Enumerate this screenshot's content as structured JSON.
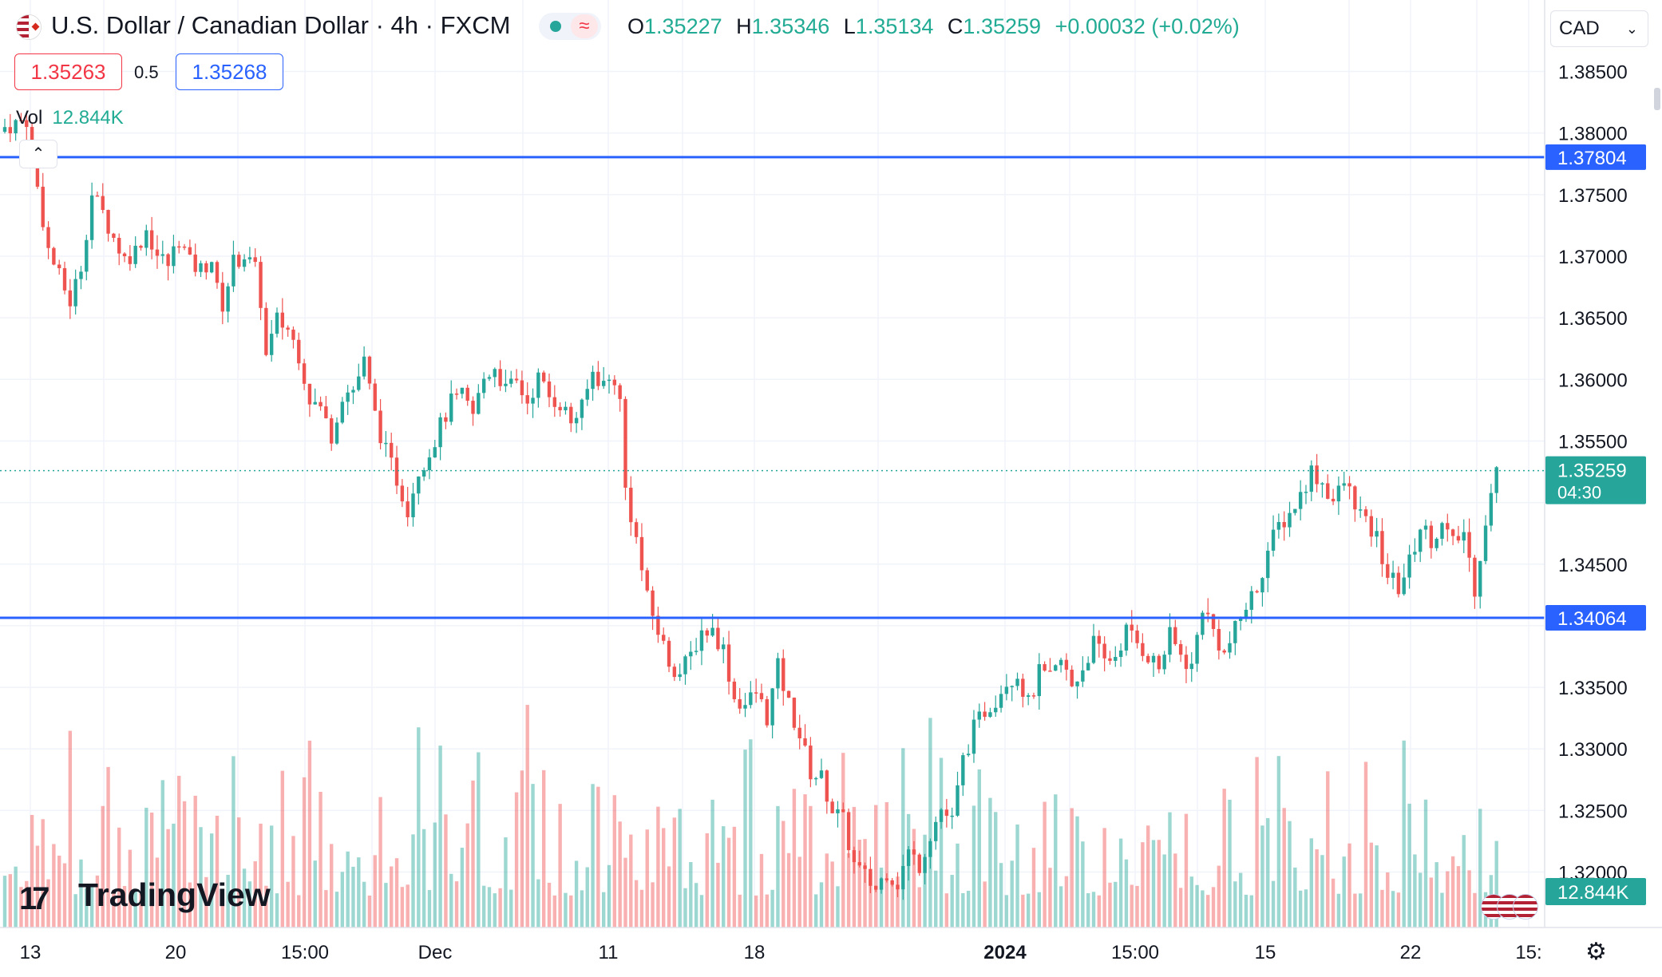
{
  "header": {
    "title": "U.S. Dollar / Canadian Dollar · 4h · FXCM",
    "ohlc": {
      "open_label": "O",
      "open": "1.35227",
      "high_label": "H",
      "high": "1.35346",
      "low_label": "L",
      "low": "1.35134",
      "close_label": "C",
      "close": "1.35259",
      "change": "+0.00032 (+0.02%)"
    },
    "bid": "1.35263",
    "spread": "0.5",
    "ask": "1.35268",
    "volume_label": "Vol",
    "volume_value": "12.844K",
    "currency": "CAD",
    "collapse_icon": "chevron-up-icon",
    "status_icon": "green-dot-icon",
    "wave_icon": "approx-wave-icon"
  },
  "colors": {
    "up": "#26a69a",
    "down": "#ef5350",
    "level_line": "#2962ff",
    "grid": "#f0f3fa"
  },
  "branding": {
    "logo_text": "TradingView",
    "logo_icon": "tradingview-logo-icon"
  },
  "axis": {
    "settings_icon": "gear-icon"
  },
  "chart_data": {
    "type": "candlestick",
    "symbol": "USDCAD",
    "interval": "4h",
    "ylim": [
      1.3155,
      1.3908
    ],
    "y_ticks": [
      "1.38500",
      "1.38000",
      "1.37500",
      "1.37000",
      "1.36500",
      "1.36000",
      "1.35500",
      "1.34500",
      "1.33500",
      "1.33000",
      "1.32500",
      "1.32000"
    ],
    "x_ticks": [
      "13",
      "20",
      "15:00",
      "Dec",
      "11",
      "18",
      "2024",
      "15:00",
      "15",
      "22",
      "15:"
    ],
    "price_levels": [
      {
        "label": "1.37804",
        "value": 1.37804
      },
      {
        "label": "1.34064",
        "value": 1.34064
      }
    ],
    "last_price": {
      "label": "1.35259",
      "value": 1.35259,
      "countdown": "04:30"
    },
    "volume_last": "12.844K",
    "close_path": [
      [
        0,
        1.3805
      ],
      [
        4,
        1.3811
      ],
      [
        5,
        1.3781
      ],
      [
        8,
        1.3705
      ],
      [
        10,
        1.3683
      ],
      [
        12,
        1.3663
      ],
      [
        14,
        1.3692
      ],
      [
        16,
        1.375
      ],
      [
        18,
        1.3735
      ],
      [
        20,
        1.3715
      ],
      [
        22,
        1.3698
      ],
      [
        24,
        1.3705
      ],
      [
        26,
        1.3722
      ],
      [
        28,
        1.3701
      ],
      [
        30,
        1.3693
      ],
      [
        32,
        1.3715
      ],
      [
        34,
        1.3694
      ],
      [
        36,
        1.3689
      ],
      [
        38,
        1.3698
      ],
      [
        39,
        1.3672
      ],
      [
        40,
        1.3661
      ],
      [
        42,
        1.3695
      ],
      [
        44,
        1.3701
      ],
      [
        46,
        1.3688
      ],
      [
        47,
        1.3664
      ],
      [
        48,
        1.3618
      ],
      [
        50,
        1.3648
      ],
      [
        52,
        1.3641
      ],
      [
        54,
        1.3621
      ],
      [
        56,
        1.3585
      ],
      [
        58,
        1.3576
      ],
      [
        60,
        1.3555
      ],
      [
        62,
        1.3588
      ],
      [
        64,
        1.3592
      ],
      [
        66,
        1.3614
      ],
      [
        68,
        1.3571
      ],
      [
        70,
        1.3541
      ],
      [
        72,
        1.3519
      ],
      [
        74,
        1.3496
      ],
      [
        76,
        1.3527
      ],
      [
        78,
        1.3541
      ],
      [
        80,
        1.3562
      ],
      [
        82,
        1.3581
      ],
      [
        84,
        1.3586
      ],
      [
        86,
        1.3571
      ],
      [
        88,
        1.3601
      ],
      [
        90,
        1.3611
      ],
      [
        92,
        1.3591
      ],
      [
        94,
        1.3597
      ],
      [
        96,
        1.3582
      ],
      [
        98,
        1.3601
      ],
      [
        100,
        1.3586
      ],
      [
        102,
        1.3581
      ],
      [
        104,
        1.3566
      ],
      [
        106,
        1.3576
      ],
      [
        108,
        1.3606
      ],
      [
        110,
        1.3596
      ],
      [
        112,
        1.3601
      ],
      [
        113,
        1.3581
      ],
      [
        114,
        1.3511
      ],
      [
        116,
        1.347
      ],
      [
        118,
        1.3421
      ],
      [
        120,
        1.3396
      ],
      [
        122,
        1.3371
      ],
      [
        124,
        1.3361
      ],
      [
        126,
        1.3376
      ],
      [
        128,
        1.3396
      ],
      [
        130,
        1.3396
      ],
      [
        132,
        1.3381
      ],
      [
        134,
        1.3341
      ],
      [
        136,
        1.3336
      ],
      [
        138,
        1.3346
      ],
      [
        140,
        1.3326
      ],
      [
        142,
        1.3366
      ],
      [
        144,
        1.3336
      ],
      [
        146,
        1.3311
      ],
      [
        148,
        1.3281
      ],
      [
        150,
        1.3276
      ],
      [
        152,
        1.3251
      ],
      [
        154,
        1.3241
      ],
      [
        156,
        1.3206
      ],
      [
        158,
        1.3196
      ],
      [
        160,
        1.3186
      ],
      [
        162,
        1.3201
      ],
      [
        164,
        1.3191
      ],
      [
        166,
        1.3216
      ],
      [
        168,
        1.3206
      ],
      [
        170,
        1.3231
      ],
      [
        172,
        1.3251
      ],
      [
        174,
        1.3241
      ],
      [
        176,
        1.3291
      ],
      [
        178,
        1.3316
      ],
      [
        180,
        1.3331
      ],
      [
        182,
        1.3341
      ],
      [
        184,
        1.3356
      ],
      [
        186,
        1.3361
      ],
      [
        188,
        1.3336
      ],
      [
        190,
        1.3361
      ],
      [
        192,
        1.3356
      ],
      [
        194,
        1.3371
      ],
      [
        196,
        1.3351
      ],
      [
        198,
        1.3366
      ],
      [
        200,
        1.3386
      ],
      [
        202,
        1.3371
      ],
      [
        204,
        1.3376
      ],
      [
        206,
        1.3396
      ],
      [
        208,
        1.3386
      ],
      [
        210,
        1.3376
      ],
      [
        212,
        1.3366
      ],
      [
        214,
        1.3391
      ],
      [
        216,
        1.3376
      ],
      [
        218,
        1.3366
      ],
      [
        220,
        1.3416
      ],
      [
        222,
        1.3396
      ],
      [
        224,
        1.3376
      ],
      [
        226,
        1.3396
      ],
      [
        228,
        1.3416
      ],
      [
        230,
        1.3431
      ],
      [
        232,
        1.3461
      ],
      [
        234,
        1.3481
      ],
      [
        236,
        1.3491
      ],
      [
        238,
        1.3506
      ],
      [
        240,
        1.3526
      ],
      [
        242,
        1.3516
      ],
      [
        244,
        1.3501
      ],
      [
        246,
        1.3516
      ],
      [
        248,
        1.3501
      ],
      [
        250,
        1.3481
      ],
      [
        252,
        1.3471
      ],
      [
        254,
        1.3441
      ],
      [
        256,
        1.3431
      ],
      [
        258,
        1.3451
      ],
      [
        260,
        1.3481
      ],
      [
        262,
        1.3471
      ],
      [
        264,
        1.3481
      ],
      [
        266,
        1.3466
      ],
      [
        268,
        1.3476
      ],
      [
        270,
        1.3431
      ],
      [
        272,
        1.3486
      ],
      [
        274,
        1.3526
      ]
    ]
  }
}
